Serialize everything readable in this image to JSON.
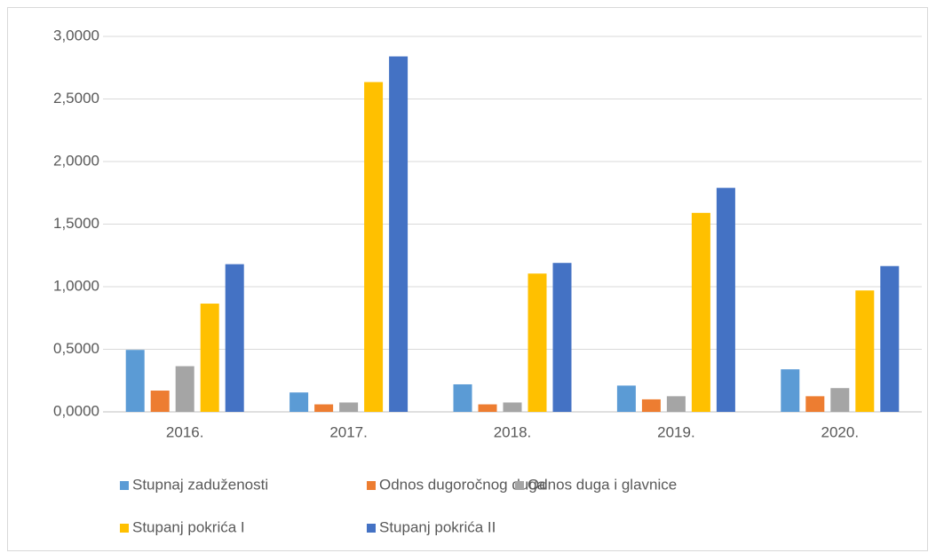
{
  "chart_data": {
    "type": "bar",
    "categories": [
      "2016.",
      "2017.",
      "2018.",
      "2019.",
      "2020."
    ],
    "series": [
      {
        "name": "Stupnaj zaduženosti",
        "color": "#5b9bd5",
        "values": [
          0.495,
          0.155,
          0.22,
          0.21,
          0.34
        ]
      },
      {
        "name": "Odnos dugoročnog duga",
        "color": "#ed7d31",
        "values": [
          0.17,
          0.06,
          0.06,
          0.1,
          0.125
        ]
      },
      {
        "name": "Odnos duga i glavnice",
        "color": "#a5a5a5",
        "values": [
          0.365,
          0.075,
          0.075,
          0.125,
          0.19
        ]
      },
      {
        "name": "Stupanj pokrića I",
        "color": "#ffc000",
        "values": [
          0.865,
          2.635,
          1.105,
          1.59,
          0.97
        ]
      },
      {
        "name": "Stupanj pokrića II",
        "color": "#4472c4",
        "values": [
          1.18,
          2.84,
          1.19,
          1.79,
          1.165
        ]
      }
    ],
    "ylim": [
      0,
      3
    ],
    "yticks": [
      {
        "value": 0,
        "label": "0,0000"
      },
      {
        "value": 0.5,
        "label": "0,5000"
      },
      {
        "value": 1,
        "label": "1,0000"
      },
      {
        "value": 1.5,
        "label": "1,5000"
      },
      {
        "value": 2,
        "label": "2,0000"
      },
      {
        "value": 2.5,
        "label": "2,5000"
      },
      {
        "value": 3,
        "label": "3,0000"
      }
    ],
    "grid": true,
    "legend": "bottom"
  }
}
